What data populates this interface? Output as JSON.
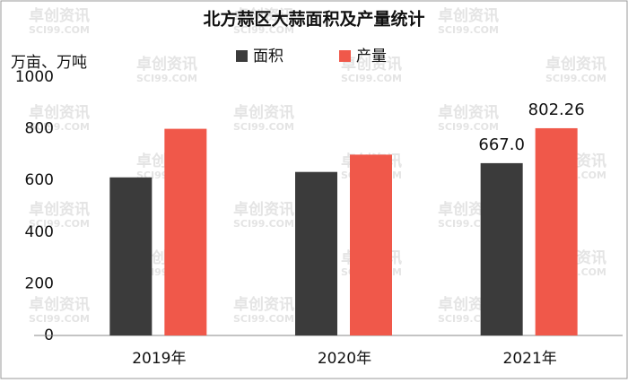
{
  "chart_data": {
    "type": "bar",
    "title": "北方蒜区大蒜面积及产量统计",
    "y_label": "万亩、万吨",
    "watermark": [
      "卓创资讯",
      "SCI99.COM"
    ],
    "categories": [
      "2019年",
      "2020年",
      "2021年"
    ],
    "series": [
      {
        "name": "面积",
        "color": "#3b3b3b",
        "values": [
          612,
          633,
          667.0
        ],
        "value_labels": [
          null,
          null,
          "667.0"
        ]
      },
      {
        "name": "产量",
        "color": "#f0584a",
        "values": [
          800,
          700,
          802.26
        ],
        "value_labels": [
          null,
          null,
          "802.26"
        ]
      }
    ],
    "ylim": [
      0,
      1000
    ],
    "yticks": [
      0,
      200,
      400,
      600,
      800,
      1000
    ],
    "grid": false,
    "legend": "top"
  }
}
